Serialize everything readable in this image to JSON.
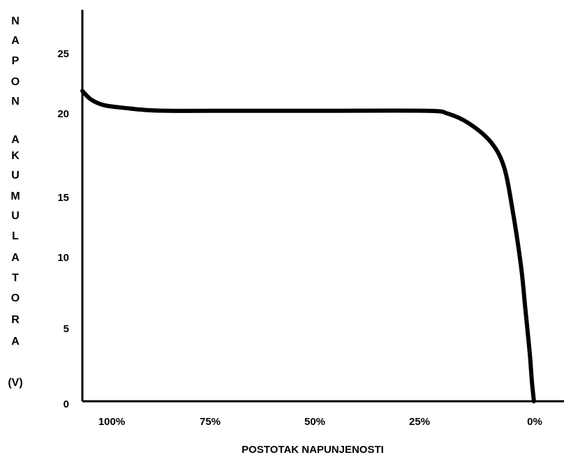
{
  "chart_data": {
    "type": "line",
    "ylabel_letters": [
      "N",
      "A",
      "P",
      "O",
      "N",
      "A",
      "K",
      "U",
      "M",
      "U",
      "L",
      "A",
      "T",
      "O",
      "R",
      "A"
    ],
    "ylabel_unit": "(V)",
    "xlabel": "POSTOTAK NAPUNJENOSTI",
    "x_ticks": [
      {
        "value": 100,
        "label": "100%"
      },
      {
        "value": 75,
        "label": "75%"
      },
      {
        "value": 50,
        "label": "50%"
      },
      {
        "value": 25,
        "label": "25%"
      },
      {
        "value": 0,
        "label": "0%"
      }
    ],
    "y_ticks": [
      {
        "value": 0,
        "label": "0"
      },
      {
        "value": 5,
        "label": "5"
      },
      {
        "value": 10,
        "label": "10"
      },
      {
        "value": 15,
        "label": "15"
      },
      {
        "value": 20,
        "label": "20"
      },
      {
        "value": 25,
        "label": "25"
      }
    ],
    "xlim": [
      105,
      -7
    ],
    "ylim": [
      0,
      27.5
    ],
    "series": [
      {
        "x": [
          105,
          103,
          100,
          95,
          90,
          85,
          75,
          50,
          25,
          20,
          15,
          10,
          7,
          5,
          3,
          2,
          1,
          0.5,
          0
        ],
        "values": [
          21.8,
          21.2,
          20.8,
          20.6,
          20.45,
          20.4,
          20.4,
          20.4,
          20.4,
          20.2,
          19.5,
          18.2,
          16.5,
          13.5,
          9.5,
          6.5,
          3.5,
          1.5,
          0
        ],
        "color": "#000000"
      }
    ],
    "grid": false,
    "legend": "none"
  }
}
